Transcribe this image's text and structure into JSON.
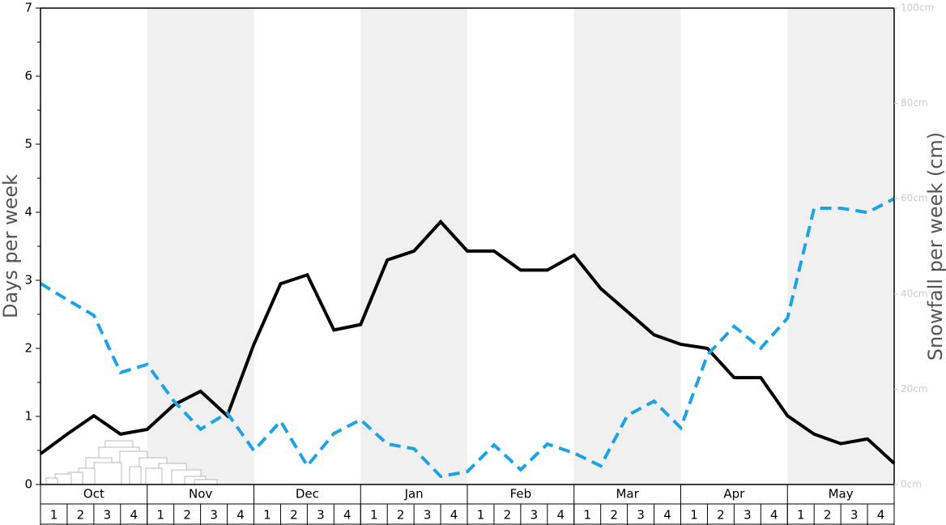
{
  "chart_data": {
    "type": "line",
    "ylabel": "Days per week",
    "y2label": "Snowfall per week (cm)",
    "months": [
      "Oct",
      "Nov",
      "Dec",
      "Jan",
      "Feb",
      "Mar",
      "Apr",
      "May"
    ],
    "weeks": [
      "1",
      "2",
      "3",
      "4"
    ],
    "shaded_months": [
      false,
      true,
      false,
      true,
      false,
      true,
      false,
      true
    ],
    "ylim": [
      0,
      7
    ],
    "yticks": [
      0,
      1,
      2,
      3,
      4,
      5,
      6,
      7
    ],
    "y2lim": [
      0,
      100
    ],
    "y2ticks": [
      {
        "value": 0,
        "label": "0cm"
      },
      {
        "value": 20,
        "label": "20cm"
      },
      {
        "value": 40,
        "label": "40cm"
      },
      {
        "value": 60,
        "label": "60cm"
      },
      {
        "value": 80,
        "label": "80cm"
      },
      {
        "value": 100,
        "label": "100cm"
      }
    ],
    "series": [
      {
        "color": "#000000",
        "dashed": false,
        "values": [
          0.45,
          0.74,
          1.01,
          0.74,
          0.81,
          1.17,
          1.37,
          1.01,
          2.06,
          2.95,
          3.08,
          2.27,
          2.35,
          3.3,
          3.43,
          3.86,
          3.43,
          3.43,
          3.15,
          3.15,
          3.37,
          2.88,
          2.54,
          2.2,
          2.06,
          2.0,
          1.57,
          1.57,
          1.01,
          0.74,
          0.6,
          0.67,
          0.31
        ]
      },
      {
        "color": "#1ca3e5",
        "dashed": true,
        "axis": "y2",
        "values": [
          42.2,
          38.8,
          35.5,
          23.5,
          25.2,
          17.5,
          11.6,
          15,
          7.1,
          13.3,
          3.9,
          10.7,
          13.6,
          8.5,
          7.5,
          1.7,
          2.7,
          8.3,
          3.1,
          8.5,
          6.6,
          3.9,
          14.5,
          17.5,
          11.9,
          27.2,
          33.2,
          28.6,
          34.9,
          58,
          58,
          57.1,
          60
        ]
      }
    ]
  }
}
